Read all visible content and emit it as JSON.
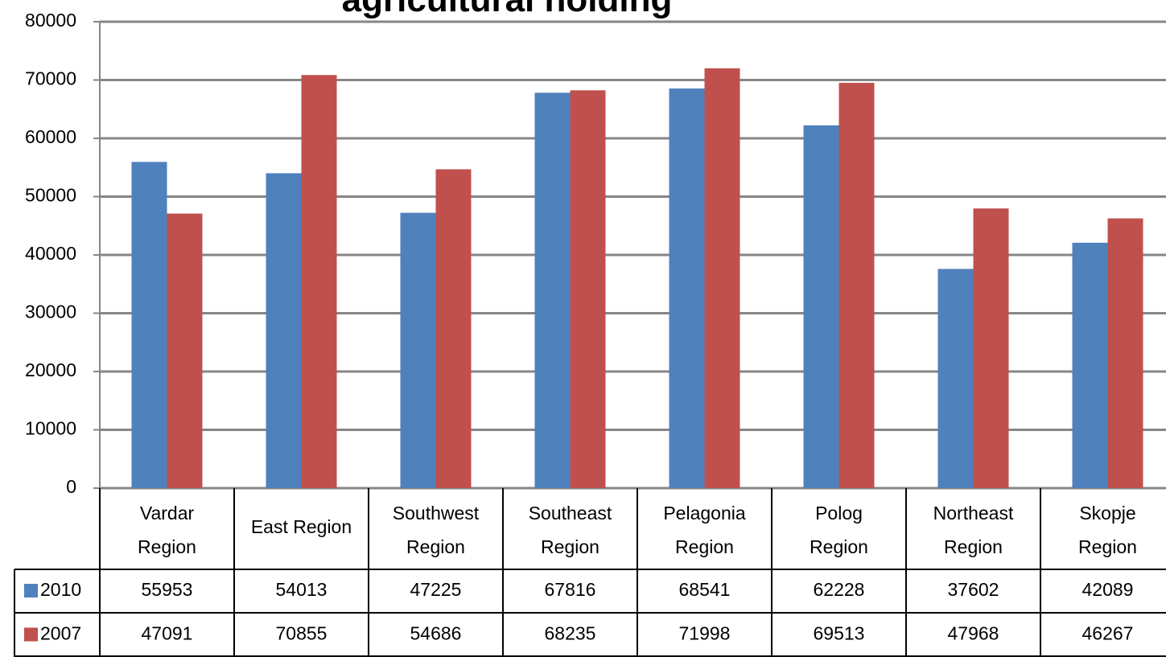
{
  "chart_data": {
    "type": "bar",
    "title": "agricultural holding",
    "categories": [
      "Vardar Region",
      "East Region",
      "Southwest Region",
      "Southeast Region",
      "Pelagonia Region",
      "Polog Region",
      "Northeast Region",
      "Skopje Region"
    ],
    "series": [
      {
        "name": "2010",
        "color": "#4f81bd",
        "values": [
          55953,
          54013,
          47225,
          67816,
          68541,
          62228,
          37602,
          42089
        ]
      },
      {
        "name": "2007",
        "color": "#c0504d",
        "values": [
          47091,
          70855,
          54686,
          68235,
          71998,
          69513,
          47968,
          46267
        ]
      }
    ],
    "ylim": [
      0,
      80000
    ],
    "yticks": [
      0,
      10000,
      20000,
      30000,
      40000,
      50000,
      60000,
      70000,
      80000
    ],
    "grid": true
  }
}
